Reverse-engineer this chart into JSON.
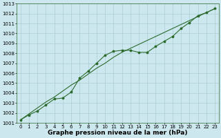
{
  "x": [
    0,
    1,
    2,
    3,
    4,
    5,
    6,
    7,
    8,
    9,
    10,
    11,
    12,
    13,
    14,
    15,
    16,
    17,
    18,
    19,
    20,
    21,
    22,
    23
  ],
  "line1_smooth": [
    1001.3,
    1001.9,
    1002.5,
    1003.1,
    1003.6,
    1004.2,
    1004.8,
    1005.3,
    1005.9,
    1006.5,
    1007.0,
    1007.6,
    1008.1,
    1008.5,
    1008.9,
    1009.3,
    1009.7,
    1010.1,
    1010.5,
    1010.9,
    1011.3,
    1011.7,
    1012.1,
    1012.5
  ],
  "line2_wiggly": [
    1001.3,
    1001.8,
    1002.2,
    1002.8,
    1003.4,
    1003.5,
    1004.1,
    1005.5,
    1006.2,
    1007.0,
    1007.8,
    1008.2,
    1008.3,
    1008.3,
    1008.1,
    1008.1,
    1008.7,
    1009.2,
    1009.7,
    1010.5,
    1011.1,
    1011.8,
    1012.1,
    1012.5
  ],
  "ylim": [
    1001,
    1013
  ],
  "xlim_min": -0.5,
  "xlim_max": 23.5,
  "yticks": [
    1001,
    1002,
    1003,
    1004,
    1005,
    1006,
    1007,
    1008,
    1009,
    1010,
    1011,
    1012,
    1013
  ],
  "xticks": [
    0,
    1,
    2,
    3,
    4,
    5,
    6,
    7,
    8,
    9,
    10,
    11,
    12,
    13,
    14,
    15,
    16,
    17,
    18,
    19,
    20,
    21,
    22,
    23
  ],
  "line_color": "#2d6a2d",
  "marker": "*",
  "marker_size": 2.5,
  "bg_color": "#cce8ee",
  "grid_color": "#aacdd6",
  "xlabel": "Graphe pression niveau de la mer (hPa)",
  "xlabel_fontsize": 6.5,
  "tick_fontsize": 5,
  "line_width": 0.8,
  "fig_width": 3.2,
  "fig_height": 2.0,
  "dpi": 100
}
